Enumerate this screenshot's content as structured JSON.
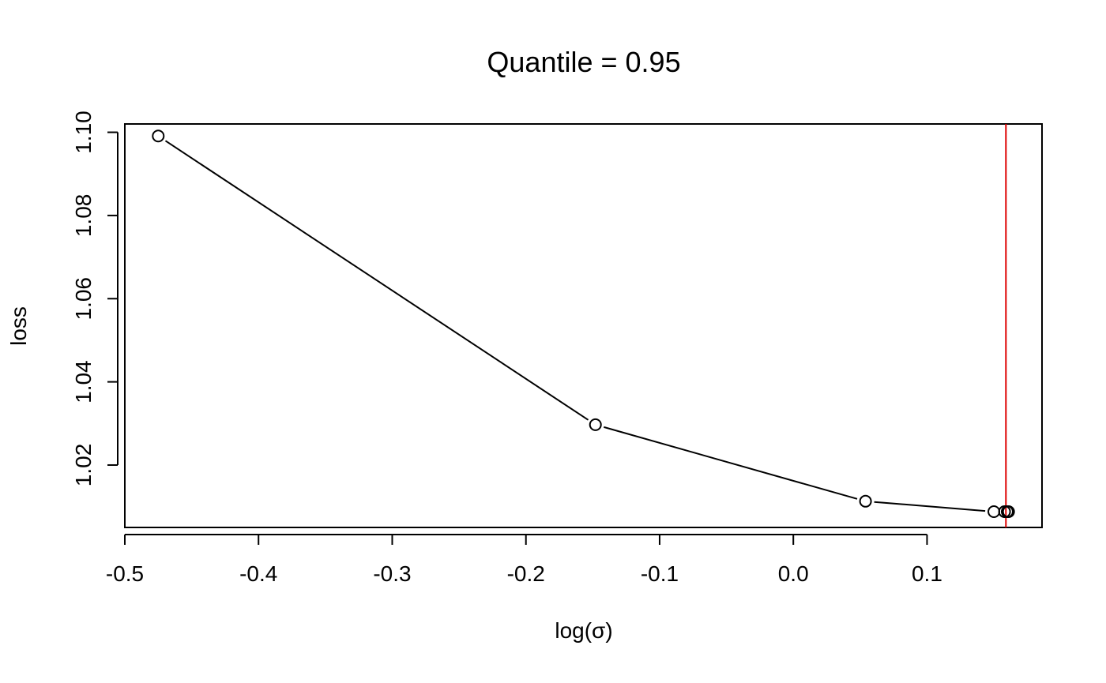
{
  "chart_data": {
    "type": "line",
    "title": "Quantile = 0.95",
    "xlabel": "log(σ)",
    "ylabel": "loss",
    "xlim": [
      -0.5,
      0.186
    ],
    "ylim": [
      1.005,
      1.102
    ],
    "x_ticks": [
      -0.5,
      -0.4,
      -0.3,
      -0.2,
      -0.1,
      0.0,
      0.1
    ],
    "x_tick_labels": [
      "-0.5",
      "-0.4",
      "-0.3",
      "-0.2",
      "-0.1",
      "0.0",
      "0.1"
    ],
    "y_ticks": [
      1.02,
      1.04,
      1.06,
      1.08,
      1.1
    ],
    "y_tick_labels": [
      "1.02",
      "1.04",
      "1.06",
      "1.08",
      "1.10"
    ],
    "series": [
      {
        "x": [
          -0.475,
          -0.148,
          0.054,
          0.15,
          0.158,
          0.16,
          0.161
        ],
        "y": [
          1.0991,
          1.0297,
          1.0113,
          1.0088,
          1.0088,
          1.0088,
          1.0088
        ],
        "marker": "open-circle",
        "line_color": "#000000"
      }
    ],
    "vline": {
      "x": 0.159,
      "color": "#dd0000"
    },
    "grid": false,
    "legend": "none"
  }
}
